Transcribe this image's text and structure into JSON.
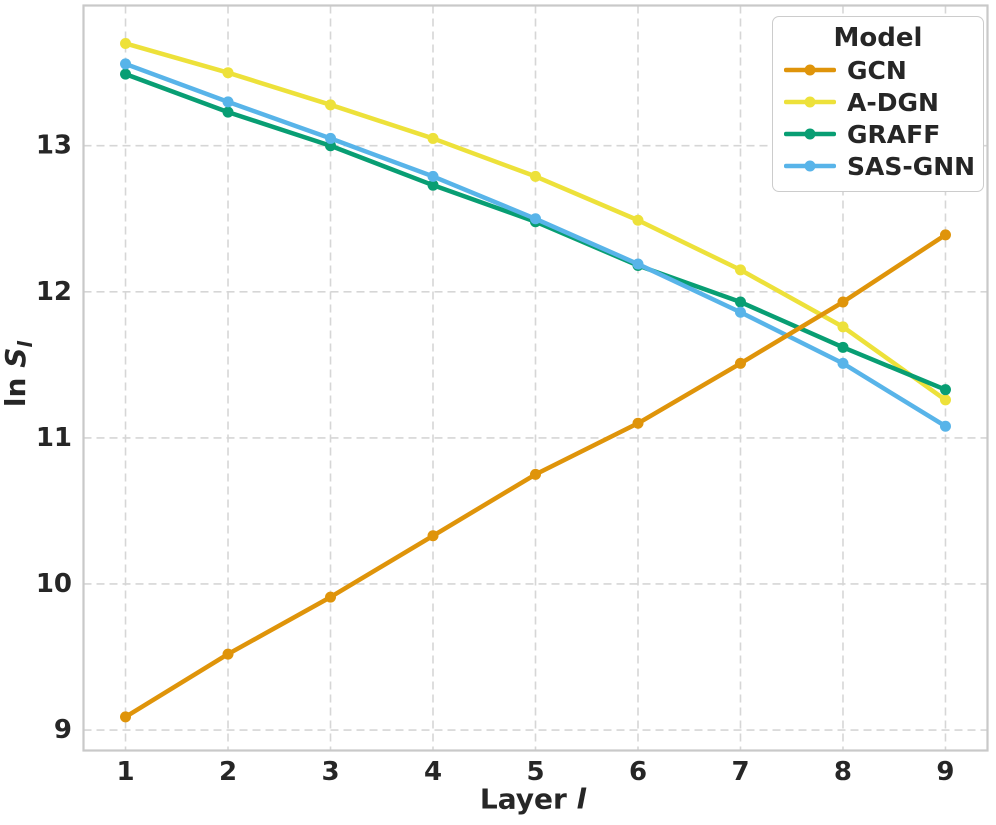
{
  "chart_data": {
    "type": "line",
    "title": "",
    "xlabel": "Layer l",
    "ylabel": "ln S_l",
    "xlabel_parts": {
      "prefix": "Layer ",
      "var": "l"
    },
    "ylabel_parts": {
      "prefix": "ln ",
      "var": "S",
      "sub": "l"
    },
    "legend_title": "Model",
    "legend_position": "upper right",
    "grid": true,
    "x": [
      1,
      2,
      3,
      4,
      5,
      6,
      7,
      8,
      9
    ],
    "x_ticks": [
      "1",
      "2",
      "3",
      "4",
      "5",
      "6",
      "7",
      "8",
      "9"
    ],
    "y_ticks": [
      "9",
      "10",
      "11",
      "12",
      "13"
    ],
    "xlim": [
      0.59,
      9.41
    ],
    "ylim": [
      8.86,
      13.96
    ],
    "draw_order": [
      1,
      2,
      3,
      0
    ],
    "series": [
      {
        "name": "GCN",
        "color": "#DF940A",
        "values": [
          9.09,
          9.52,
          9.91,
          10.33,
          10.75,
          11.1,
          11.51,
          11.93,
          12.39
        ]
      },
      {
        "name": "A-DGN",
        "color": "#EDE13A",
        "values": [
          13.7,
          13.5,
          13.28,
          13.05,
          12.79,
          12.49,
          12.15,
          11.76,
          11.26
        ]
      },
      {
        "name": "GRAFF",
        "color": "#089E73",
        "values": [
          13.49,
          13.23,
          13.0,
          12.73,
          12.48,
          12.18,
          11.93,
          11.62,
          11.33
        ]
      },
      {
        "name": "SAS-GNN",
        "color": "#58B4E9",
        "values": [
          13.56,
          13.3,
          13.05,
          12.79,
          12.5,
          12.19,
          11.86,
          11.51,
          11.08
        ]
      }
    ]
  },
  "style": {
    "grid_color": "#d6d6d6",
    "spine_color": "#c9c9c9",
    "text_color": "#262626",
    "background": "#ffffff"
  }
}
